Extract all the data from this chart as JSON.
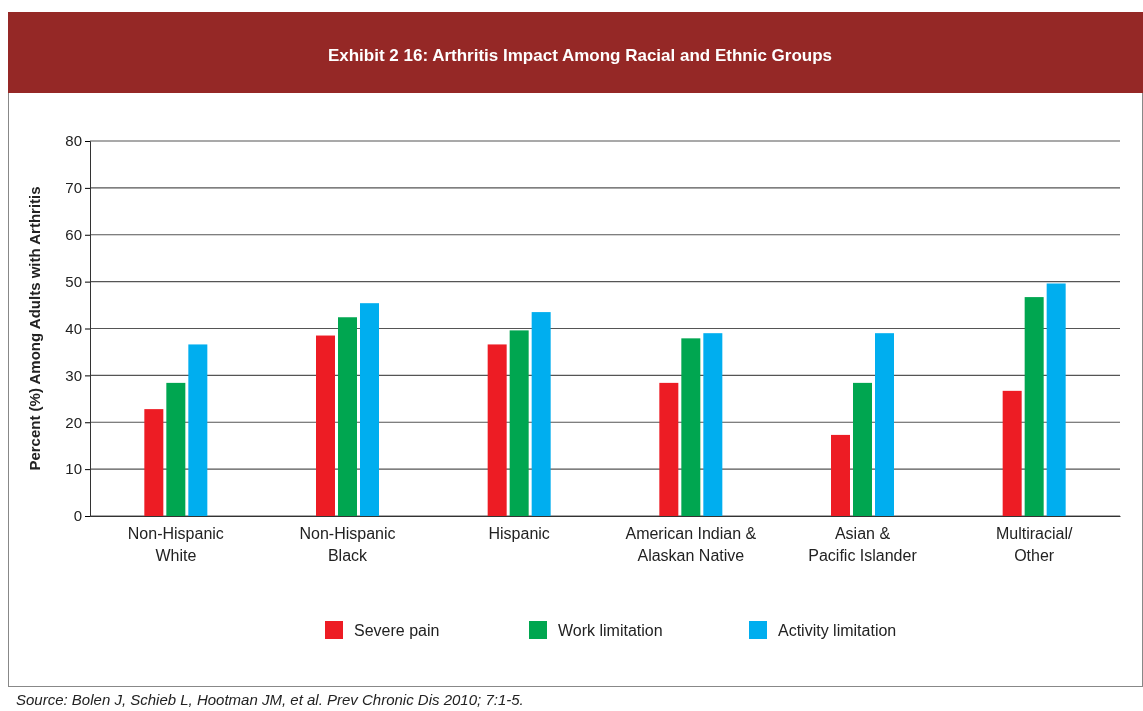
{
  "chart_data": {
    "type": "bar",
    "title": "Exhibit 2 16:  Arthritis Impact Among Racial and Ethnic Groups",
    "ylabel": "Percent (%) Among Adults with Arthritis",
    "categories": [
      "Non-Hispanic\nWhite",
      "Non-Hispanic\nBlack",
      "Hispanic",
      "American Indian &\nAlaskan Native",
      "Asian &\nPacific Islander",
      "Multiracial/\nOther"
    ],
    "series": [
      {
        "name": "Severe pain",
        "color": "#ed1c24",
        "values": [
          22.8,
          38.5,
          36.6,
          28.4,
          17.3,
          26.7
        ]
      },
      {
        "name": "Work limitation",
        "color": "#00a650",
        "values": [
          28.4,
          42.4,
          39.6,
          37.9,
          28.4,
          46.7
        ]
      },
      {
        "name": "Activity limitation",
        "color": "#00aeef",
        "values": [
          36.6,
          45.4,
          43.5,
          39.0,
          39.0,
          49.6
        ]
      }
    ],
    "ylim": [
      0,
      80
    ],
    "yticks": [
      0,
      10,
      20,
      30,
      40,
      50,
      60,
      70,
      80
    ],
    "grid": "y",
    "legend": "bottom",
    "annotations": [
      "Source: Bolen J, Schieb L, Hootman JM, et al.  Prev Chronic Dis 2010; 7:1-5."
    ]
  }
}
